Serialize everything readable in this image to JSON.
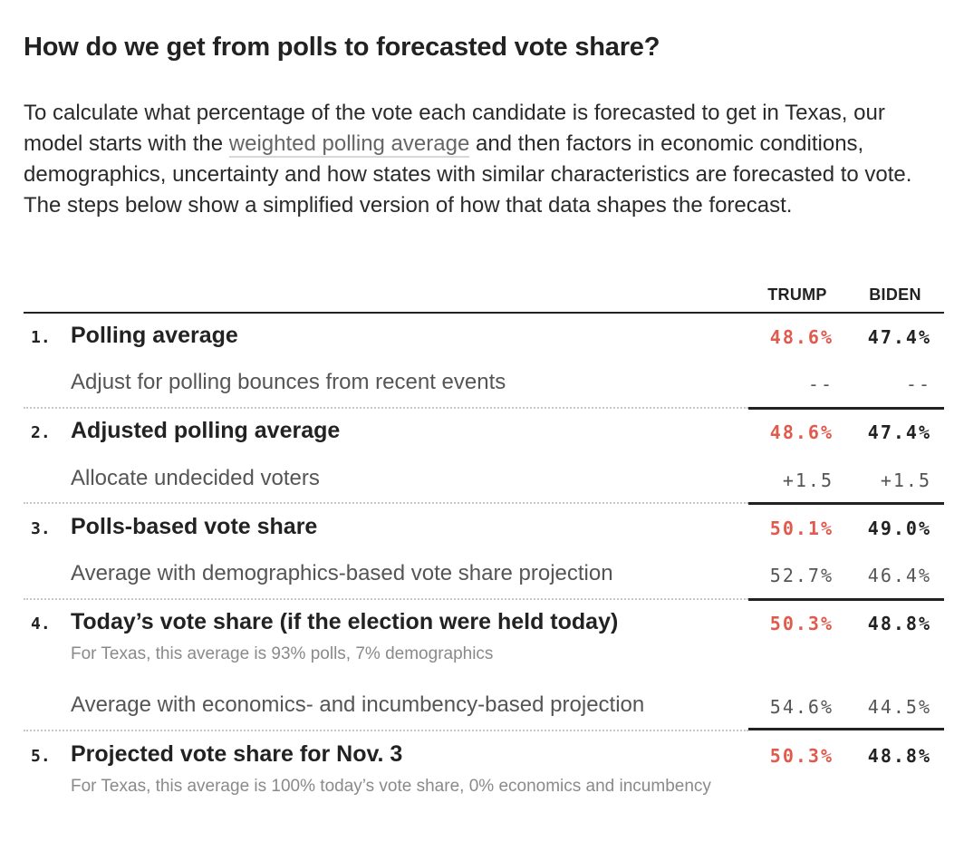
{
  "title": "How do we get from polls to forecasted vote share?",
  "intro": {
    "before": "To calculate what percentage of the vote each candidate is forecasted to get in Texas, our model starts with the ",
    "link": "weighted polling average",
    "after": " and then factors in economic conditions, demographics, uncertainty and how states with similar characteristics are forecasted to vote. The steps below show a simplified version of how that data shapes the forecast."
  },
  "columns": {
    "trump": "TRUMP",
    "biden": "BIDEN"
  },
  "colors": {
    "trump": "#e05a4e",
    "text": "#222222"
  },
  "steps": [
    {
      "num": "1.",
      "label": "Polling average",
      "trump": "48.6%",
      "biden": "47.4%"
    },
    {
      "num": "2.",
      "label": "Adjusted polling average",
      "trump": "48.6%",
      "biden": "47.4%"
    },
    {
      "num": "3.",
      "label": "Polls-based vote share",
      "trump": "50.1%",
      "biden": "49.0%"
    },
    {
      "num": "4.",
      "label": "Today’s vote share (if the election were held today)",
      "trump": "50.3%",
      "biden": "48.8%",
      "note": "For Texas, this average is 93% polls, 7% demographics"
    },
    {
      "num": "5.",
      "label": "Projected vote share for Nov. 3",
      "trump": "50.3%",
      "biden": "48.8%",
      "note": "For Texas, this average is 100% today’s vote share, 0% economics and incumbency"
    }
  ],
  "adjustments": [
    {
      "label": "Adjust for polling bounces from recent events",
      "trump": "--",
      "biden": "--"
    },
    {
      "label": "Allocate undecided voters",
      "trump": "+1.5",
      "biden": "+1.5"
    },
    {
      "label": "Average with demographics-based vote share projection",
      "trump": "52.7%",
      "biden": "46.4%"
    },
    {
      "label": "Average with economics- and incumbency-based projection",
      "trump": "54.6%",
      "biden": "44.5%"
    }
  ]
}
